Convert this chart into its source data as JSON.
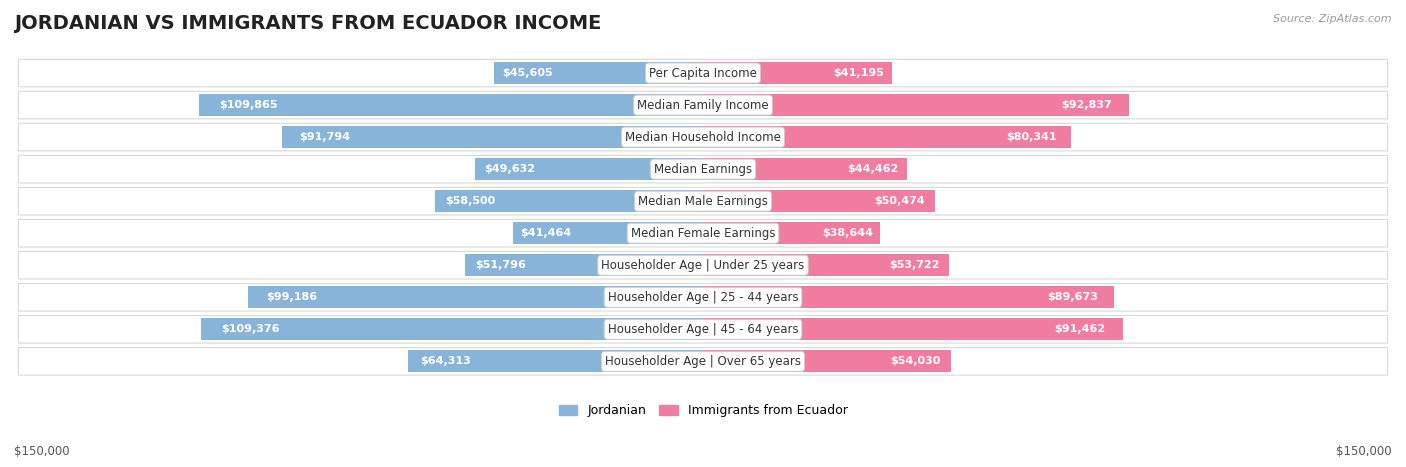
{
  "title": "JORDANIAN VS IMMIGRANTS FROM ECUADOR INCOME",
  "source": "Source: ZipAtlas.com",
  "categories": [
    "Per Capita Income",
    "Median Family Income",
    "Median Household Income",
    "Median Earnings",
    "Median Male Earnings",
    "Median Female Earnings",
    "Householder Age | Under 25 years",
    "Householder Age | 25 - 44 years",
    "Householder Age | 45 - 64 years",
    "Householder Age | Over 65 years"
  ],
  "jordanian_values": [
    45605,
    109865,
    91794,
    49632,
    58500,
    41464,
    51796,
    99186,
    109376,
    64313
  ],
  "ecuador_values": [
    41195,
    92837,
    80341,
    44462,
    50474,
    38644,
    53722,
    89673,
    91462,
    54030
  ],
  "jordanian_color_bar": "#89b4d9",
  "ecuador_color_bar": "#f07ca0",
  "label_bg_color": "#f0f0f0",
  "row_bg_color": "#f0f0f0",
  "row_border_color": "#d8d8d8",
  "max_value": 150000,
  "legend_jordan": "Jordanian",
  "legend_ecuador": "Immigrants from Ecuador",
  "background_color": "#ffffff",
  "title_fontsize": 14,
  "label_fontsize": 8.5,
  "value_fontsize": 8,
  "axis_label": "$150,000"
}
